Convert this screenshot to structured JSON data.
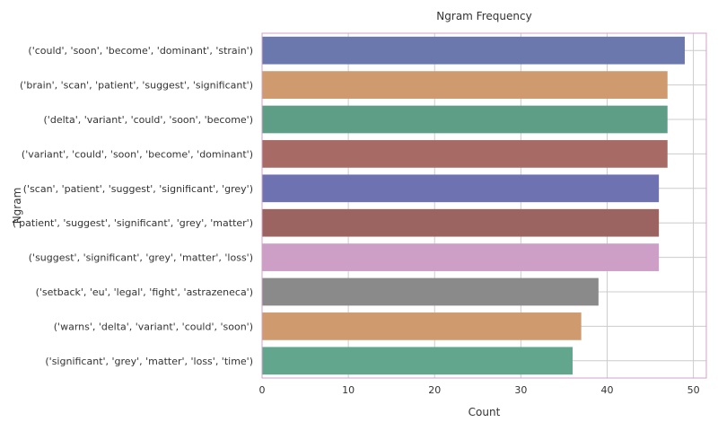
{
  "chart_data": {
    "type": "bar",
    "orientation": "horizontal",
    "title": "Ngram Frequency",
    "xlabel": "Count",
    "ylabel": "Ngram",
    "xlim": [
      0,
      51.5
    ],
    "xticks": [
      0,
      10,
      20,
      30,
      40,
      50
    ],
    "grid": true,
    "categories": [
      "('could', 'soon', 'become', 'dominant', 'strain')",
      "('brain', 'scan', 'patient', 'suggest', 'significant')",
      "('delta', 'variant', 'could', 'soon', 'become')",
      "('variant', 'could', 'soon', 'become', 'dominant')",
      "('scan', 'patient', 'suggest', 'significant', 'grey')",
      "('patient', 'suggest', 'significant', 'grey', 'matter')",
      "('suggest', 'significant', 'grey', 'matter', 'loss')",
      "('setback', 'eu', 'legal', 'fight', 'astrazeneca')",
      "('warns', 'delta', 'variant', 'could', 'soon')",
      "('significant', 'grey', 'matter', 'loss', 'time')"
    ],
    "values": [
      49,
      47,
      47,
      47,
      46,
      46,
      46,
      39,
      37,
      36
    ],
    "colors": [
      "#6b78ad",
      "#cf9a6e",
      "#5e9e86",
      "#a86a65",
      "#6e72b0",
      "#9c6460",
      "#cd9ec6",
      "#8a8a8a",
      "#cf9a6e",
      "#62a68e"
    ]
  }
}
